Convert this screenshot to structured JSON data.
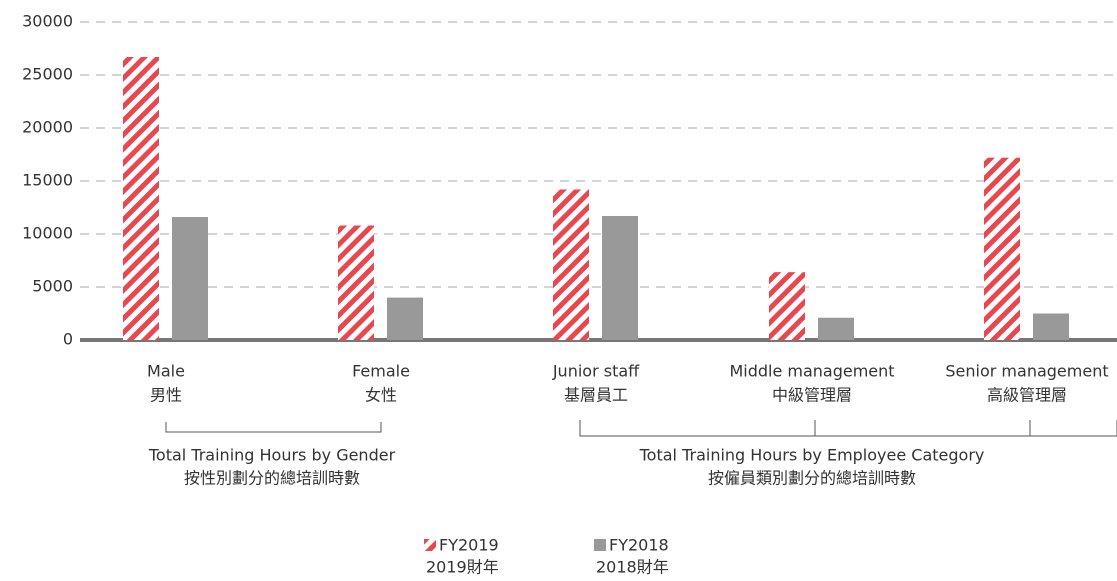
{
  "chart_data": {
    "type": "bar",
    "categories": [
      [
        "Male",
        "男性"
      ],
      [
        "Female",
        "女性"
      ],
      [
        "Junior staff",
        "基層員工"
      ],
      [
        "Middle management",
        "中級管理層"
      ],
      [
        "Senior management",
        "高級管理層"
      ]
    ],
    "series": [
      {
        "name": [
          "FY2019",
          "2019財年"
        ],
        "color": "#e8474f",
        "pattern": "hatch",
        "values": [
          26700,
          10800,
          14200,
          6400,
          17200
        ]
      },
      {
        "name": [
          "FY2018",
          "2018財年"
        ],
        "color": "#999999",
        "values": [
          11600,
          4000,
          11700,
          2100,
          2500
        ]
      }
    ],
    "groups": [
      [
        "Total Training Hours by Gender",
        "按性別劃分的總培訓時數"
      ],
      [
        "Total Training Hours by Employee Category",
        "按僱員類別劃分的總培訓時數"
      ]
    ],
    "ylim": [
      0,
      30000
    ],
    "yticks": [
      0,
      5000,
      10000,
      15000,
      20000,
      25000,
      30000
    ],
    "grid": true
  }
}
